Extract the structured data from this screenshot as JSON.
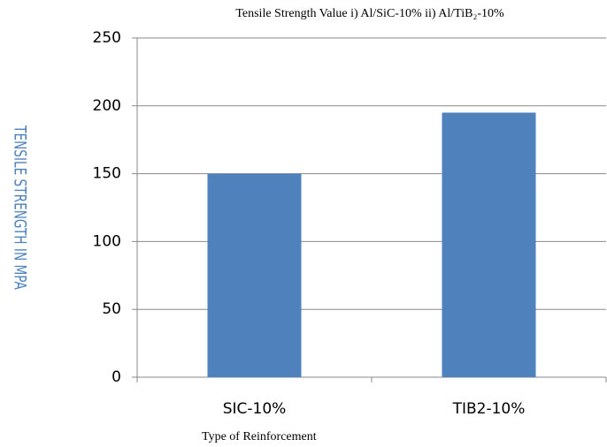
{
  "chart_data": {
    "type": "bar",
    "title": "Tensile Strength Value i) Al/SiC-10%  ii) Al/TiB₂-10%",
    "y_label": "TENSILE STRENGTH IN MPA",
    "x_label": "Type  of Reinforcement",
    "categories": [
      "SIC-10%",
      "TIB2-10%"
    ],
    "values": [
      150,
      195
    ],
    "color": "#4f81bd",
    "ylim": [
      0,
      250
    ],
    "yticks": [
      0,
      50,
      100,
      150,
      200,
      250
    ],
    "grid": true
  }
}
